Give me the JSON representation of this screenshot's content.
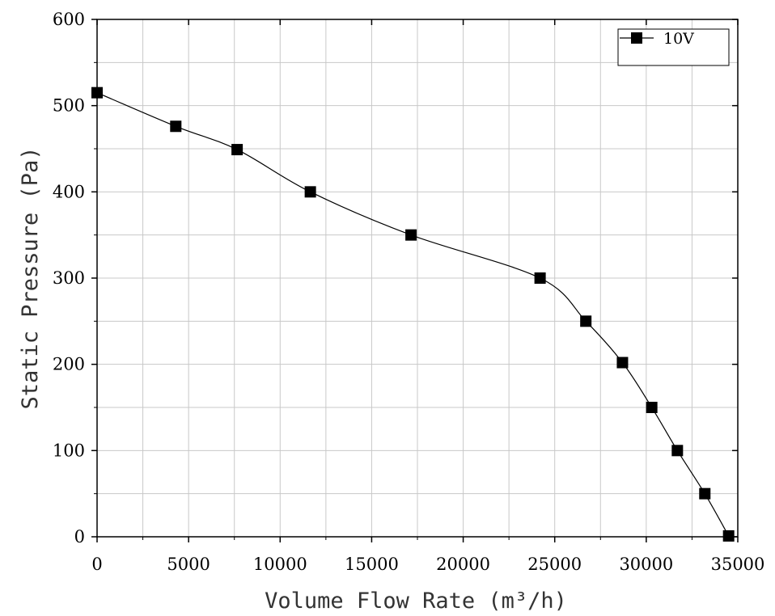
{
  "chart_data": {
    "type": "line",
    "xlabel": "Volume Flow Rate (m³/h)",
    "ylabel": "Static Pressure (Pa)",
    "xlim": [
      0,
      35000
    ],
    "ylim": [
      0,
      600
    ],
    "x_ticks": [
      0,
      5000,
      10000,
      15000,
      20000,
      25000,
      30000,
      35000
    ],
    "y_ticks": [
      0,
      100,
      200,
      300,
      400,
      500,
      600
    ],
    "x_tick_labels": [
      "0",
      "5000",
      "10000",
      "15000",
      "20000",
      "25000",
      "30000",
      "35000"
    ],
    "y_tick_labels": [
      "0",
      "100",
      "200",
      "300",
      "400",
      "500",
      "600"
    ],
    "grid": true,
    "legend_position": "top-right",
    "series": [
      {
        "name": "10V",
        "color": "#000000",
        "marker": "square",
        "x": [
          0,
          4300,
          7650,
          11650,
          17150,
          24200,
          26700,
          28700,
          30300,
          31700,
          33200,
          34500
        ],
        "y": [
          515,
          476,
          449,
          400,
          350,
          300,
          250,
          202,
          150,
          100,
          50,
          1
        ]
      }
    ]
  }
}
